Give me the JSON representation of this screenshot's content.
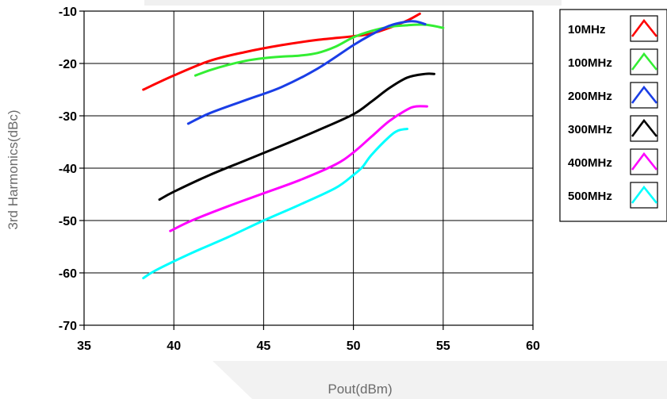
{
  "chart_data": {
    "type": "line",
    "xlabel": "Pout(dBm)",
    "ylabel": "3rd Harmonics(dBc)",
    "xlim": [
      35,
      60
    ],
    "ylim": [
      -70,
      -10
    ],
    "x_ticks": [
      "35",
      "40",
      "45",
      "50",
      "55",
      "60"
    ],
    "y_ticks": [
      "-10",
      "-20",
      "-30",
      "-40",
      "-50",
      "-60",
      "-70"
    ],
    "grid": true,
    "legend_position": "right",
    "series": [
      {
        "name": "10MHz",
        "color": "#ff0000",
        "x": [
          38.3,
          40,
          42,
          44,
          46,
          48,
          50,
          51,
          52,
          53,
          53.7
        ],
        "y": [
          -25,
          -22.3,
          -19.5,
          -17.8,
          -16.5,
          -15.5,
          -14.8,
          -14.3,
          -13.2,
          -11.8,
          -10.5
        ]
      },
      {
        "name": "100MHz",
        "color": "#33ee33",
        "x": [
          41.2,
          42,
          43,
          44,
          45,
          46,
          47,
          48,
          49,
          50,
          51,
          52,
          53,
          54,
          55
        ],
        "y": [
          -22.3,
          -21.3,
          -20.3,
          -19.5,
          -19,
          -18.7,
          -18.5,
          -18,
          -16.8,
          -15,
          -13.8,
          -13,
          -12.7,
          -12.6,
          -13.2
        ]
      },
      {
        "name": "200MHz",
        "color": "#1a3ee6",
        "x": [
          40.8,
          42,
          44,
          46,
          48,
          50,
          51,
          52,
          53,
          53.5,
          54
        ],
        "y": [
          -31.5,
          -29.5,
          -27,
          -24.5,
          -21,
          -16.5,
          -14.5,
          -12.8,
          -12,
          -12,
          -12.5
        ]
      },
      {
        "name": "300MHz",
        "color": "#000000",
        "x": [
          39.2,
          40,
          42,
          44,
          46,
          48,
          50,
          51,
          52,
          53,
          54,
          54.5
        ],
        "y": [
          -46,
          -44.5,
          -41.3,
          -38.5,
          -35.7,
          -32.8,
          -29.7,
          -27.3,
          -24.7,
          -22.7,
          -22,
          -22
        ]
      },
      {
        "name": "400MHz",
        "color": "#ff00ff",
        "x": [
          39.8,
          41,
          43,
          45,
          47,
          49,
          50,
          51,
          52,
          53,
          53.5,
          54.1
        ],
        "y": [
          -52,
          -50,
          -47.3,
          -44.8,
          -42.3,
          -39.3,
          -37,
          -34,
          -31,
          -28.8,
          -28.2,
          -28.2
        ]
      },
      {
        "name": "500MHz",
        "color": "#00ffff",
        "x": [
          38.3,
          39,
          41,
          43,
          45,
          47,
          49,
          50,
          50.5,
          51,
          52,
          52.5,
          53
        ],
        "y": [
          -61,
          -59.5,
          -56.2,
          -53.2,
          -50,
          -47,
          -43.8,
          -41.3,
          -39.8,
          -37.5,
          -34,
          -32.8,
          -32.5
        ]
      }
    ]
  }
}
